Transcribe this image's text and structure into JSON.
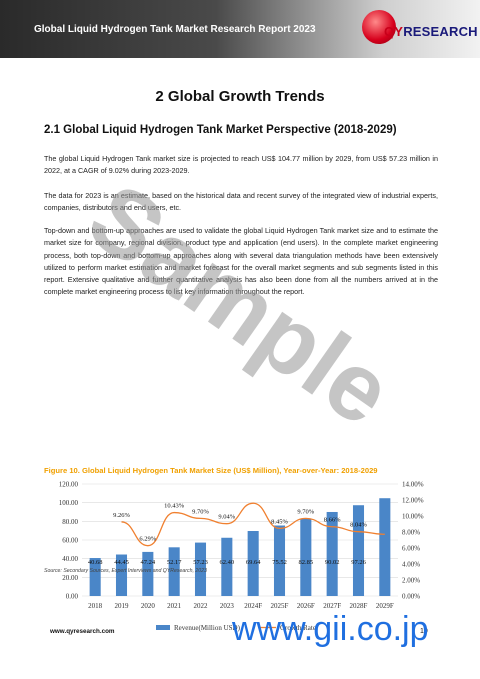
{
  "header": {
    "title": "Global Liquid Hydrogen Tank Market Research Report 2023"
  },
  "logo": {
    "text_main": "QY",
    "text_sub": "RESEARCH"
  },
  "section": {
    "title": "2  Global Growth Trends"
  },
  "subsection": {
    "title": "2.1  Global Liquid Hydrogen Tank Market Perspective (2018-2029)"
  },
  "paragraphs": {
    "p1": "The global Liquid Hydrogen Tank market size is projected to reach US$ 104.77 million by 2029, from US$ 57.23 million in 2022, at a CAGR of 9.02% during 2023-2029.",
    "p2": "The data for 2023 is an estimate, based on the historical data and recent survey of the integrated view of industrial experts, companies, distributors and end users, etc.",
    "p3": "Top-down and bottom-up approaches are used to validate the global Liquid Hydrogen Tank market size and to estimate the market size for company, regional division, product type and application (end users). In the complete market engineering process, both top-down and bottom-up approaches along with several data triangulation methods have been extensively utilized to perform market estimation and market forecast for the overall market segments and sub segments listed in this report. Extensive qualitative and further quantitative analysis has also been done from all the numbers arrived at in the complete market engineering process to list key information throughout the report."
  },
  "figure": {
    "caption": "Figure 10.   Global Liquid Hydrogen Tank Market Size (US$ Million), Year-over-Year: 2018-2029"
  },
  "chart_data": {
    "type": "bar",
    "categories": [
      "2018",
      "2019",
      "2020",
      "2021",
      "2022",
      "2023",
      "2024F",
      "2025F",
      "2026F",
      "2027F",
      "2028F",
      "2029F"
    ],
    "series": [
      {
        "name": "Revenue(Million USD)",
        "type": "bar",
        "axis": "left",
        "color": "#4a86c8",
        "values": [
          40.68,
          44.45,
          47.24,
          52.17,
          57.23,
          62.4,
          69.64,
          75.52,
          82.85,
          90.02,
          97.26,
          104.77
        ],
        "labels": [
          "40.68",
          "44.45",
          "47.24",
          "52.17",
          "57.23",
          "62.40",
          "69.64",
          "75.52",
          "82.85",
          "90.02",
          "97.26",
          ""
        ]
      },
      {
        "name": "Growth Rate",
        "type": "line",
        "axis": "right",
        "color": "#f08030",
        "values": [
          null,
          9.26,
          6.29,
          10.43,
          9.7,
          9.04,
          11.6,
          8.45,
          9.7,
          8.66,
          8.04,
          7.72
        ],
        "labels": [
          "",
          "9.26%",
          "6.29%",
          "10.43%",
          "9.70%",
          "9.04%",
          "",
          "8.45%",
          "9.70%",
          "8.66%",
          "8.04%",
          ""
        ]
      }
    ],
    "y_left": {
      "min": 0,
      "max": 120,
      "ticks": [
        "0.00",
        "20.00",
        "40.00",
        "60.00",
        "80.00",
        "100.00",
        "120.00"
      ]
    },
    "y_right": {
      "min": 0,
      "max": 14,
      "ticks": [
        "0.00%",
        "2.00%",
        "4.00%",
        "6.00%",
        "8.00%",
        "10.00%",
        "12.00%",
        "14.00%"
      ]
    },
    "grid": true,
    "legend": "bottom"
  },
  "source": {
    "text": "Source: Secondary Sources, Expert Interviews and QYResearch, 2023"
  },
  "footer": {
    "url": "www.qyresearch.com",
    "page": "10"
  },
  "watermarks": {
    "sample": "Sample",
    "gii": "www.gii.co.jp"
  }
}
